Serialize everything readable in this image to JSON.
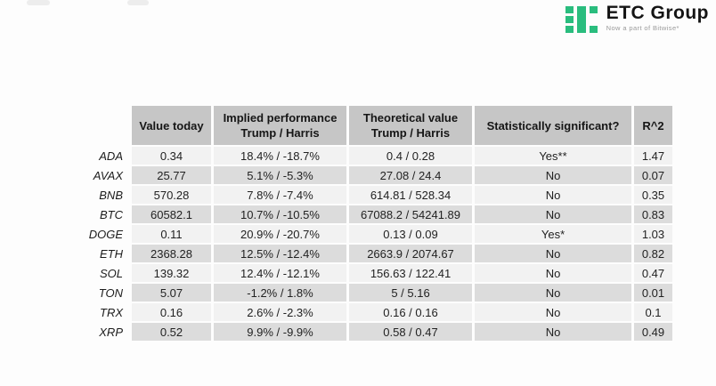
{
  "logo": {
    "name": "ETC Group",
    "tagline": "Now a part of Bitwise*",
    "brand_green": "#2abd7e"
  },
  "table": {
    "headers": {
      "value_today": "Value today",
      "implied_line1": "Implied performance",
      "implied_line2": "Trump / Harris",
      "theoretical_line1": "Theoretical value",
      "theoretical_line2": "Trump / Harris",
      "significant": "Statistically significant?",
      "r2": "R^2"
    },
    "rows": [
      {
        "asset": "ADA",
        "value_today": "0.34",
        "implied": "18.4% / -18.7%",
        "theoretical": "0.4 / 0.28",
        "significant": "Yes**",
        "r2": "1.47"
      },
      {
        "asset": "AVAX",
        "value_today": "25.77",
        "implied": "5.1% / -5.3%",
        "theoretical": "27.08 / 24.4",
        "significant": "No",
        "r2": "0.07"
      },
      {
        "asset": "BNB",
        "value_today": "570.28",
        "implied": "7.8% / -7.4%",
        "theoretical": "614.81 / 528.34",
        "significant": "No",
        "r2": "0.35"
      },
      {
        "asset": "BTC",
        "value_today": "60582.1",
        "implied": "10.7% / -10.5%",
        "theoretical": "67088.2 / 54241.89",
        "significant": "No",
        "r2": "0.83"
      },
      {
        "asset": "DOGE",
        "value_today": "0.11",
        "implied": "20.9% / -20.7%",
        "theoretical": "0.13 / 0.09",
        "significant": "Yes*",
        "r2": "1.03"
      },
      {
        "asset": "ETH",
        "value_today": "2368.28",
        "implied": "12.5% / -12.4%",
        "theoretical": "2663.9 / 2074.67",
        "significant": "No",
        "r2": "0.82"
      },
      {
        "asset": "SOL",
        "value_today": "139.32",
        "implied": "12.4% / -12.1%",
        "theoretical": "156.63 / 122.41",
        "significant": "No",
        "r2": "0.47"
      },
      {
        "asset": "TON",
        "value_today": "5.07",
        "implied": "-1.2% / 1.8%",
        "theoretical": "5 / 5.16",
        "significant": "No",
        "r2": "0.01"
      },
      {
        "asset": "TRX",
        "value_today": "0.16",
        "implied": "2.6% / -2.3%",
        "theoretical": "0.16 / 0.16",
        "significant": "No",
        "r2": "0.1"
      },
      {
        "asset": "XRP",
        "value_today": "0.52",
        "implied": "9.9% / -9.9%",
        "theoretical": "0.58 / 0.47",
        "significant": "No",
        "r2": "0.49"
      }
    ]
  },
  "chart_data": {
    "type": "table",
    "columns": [
      "Asset",
      "Value today",
      "Implied performance Trump / Harris",
      "Theoretical value Trump / Harris",
      "Statistically significant?",
      "R^2"
    ],
    "rows": [
      [
        "ADA",
        "0.34",
        "18.4% / -18.7%",
        "0.4 / 0.28",
        "Yes**",
        "1.47"
      ],
      [
        "AVAX",
        "25.77",
        "5.1% / -5.3%",
        "27.08 / 24.4",
        "No",
        "0.07"
      ],
      [
        "BNB",
        "570.28",
        "7.8% / -7.4%",
        "614.81 / 528.34",
        "No",
        "0.35"
      ],
      [
        "BTC",
        "60582.1",
        "10.7% / -10.5%",
        "67088.2 / 54241.89",
        "No",
        "0.83"
      ],
      [
        "DOGE",
        "0.11",
        "20.9% / -20.7%",
        "0.13 / 0.09",
        "Yes*",
        "1.03"
      ],
      [
        "ETH",
        "2368.28",
        "12.5% / -12.4%",
        "2663.9 / 2074.67",
        "No",
        "0.82"
      ],
      [
        "SOL",
        "139.32",
        "12.4% / -12.1%",
        "156.63 / 122.41",
        "No",
        "0.47"
      ],
      [
        "TON",
        "5.07",
        "-1.2% / 1.8%",
        "5 / 5.16",
        "No",
        "0.01"
      ],
      [
        "TRX",
        "0.16",
        "2.6% / -2.3%",
        "0.16 / 0.16",
        "No",
        "0.1"
      ],
      [
        "XRP",
        "0.52",
        "9.9% / -9.9%",
        "0.58 / 0.47",
        "No",
        "0.49"
      ]
    ]
  }
}
